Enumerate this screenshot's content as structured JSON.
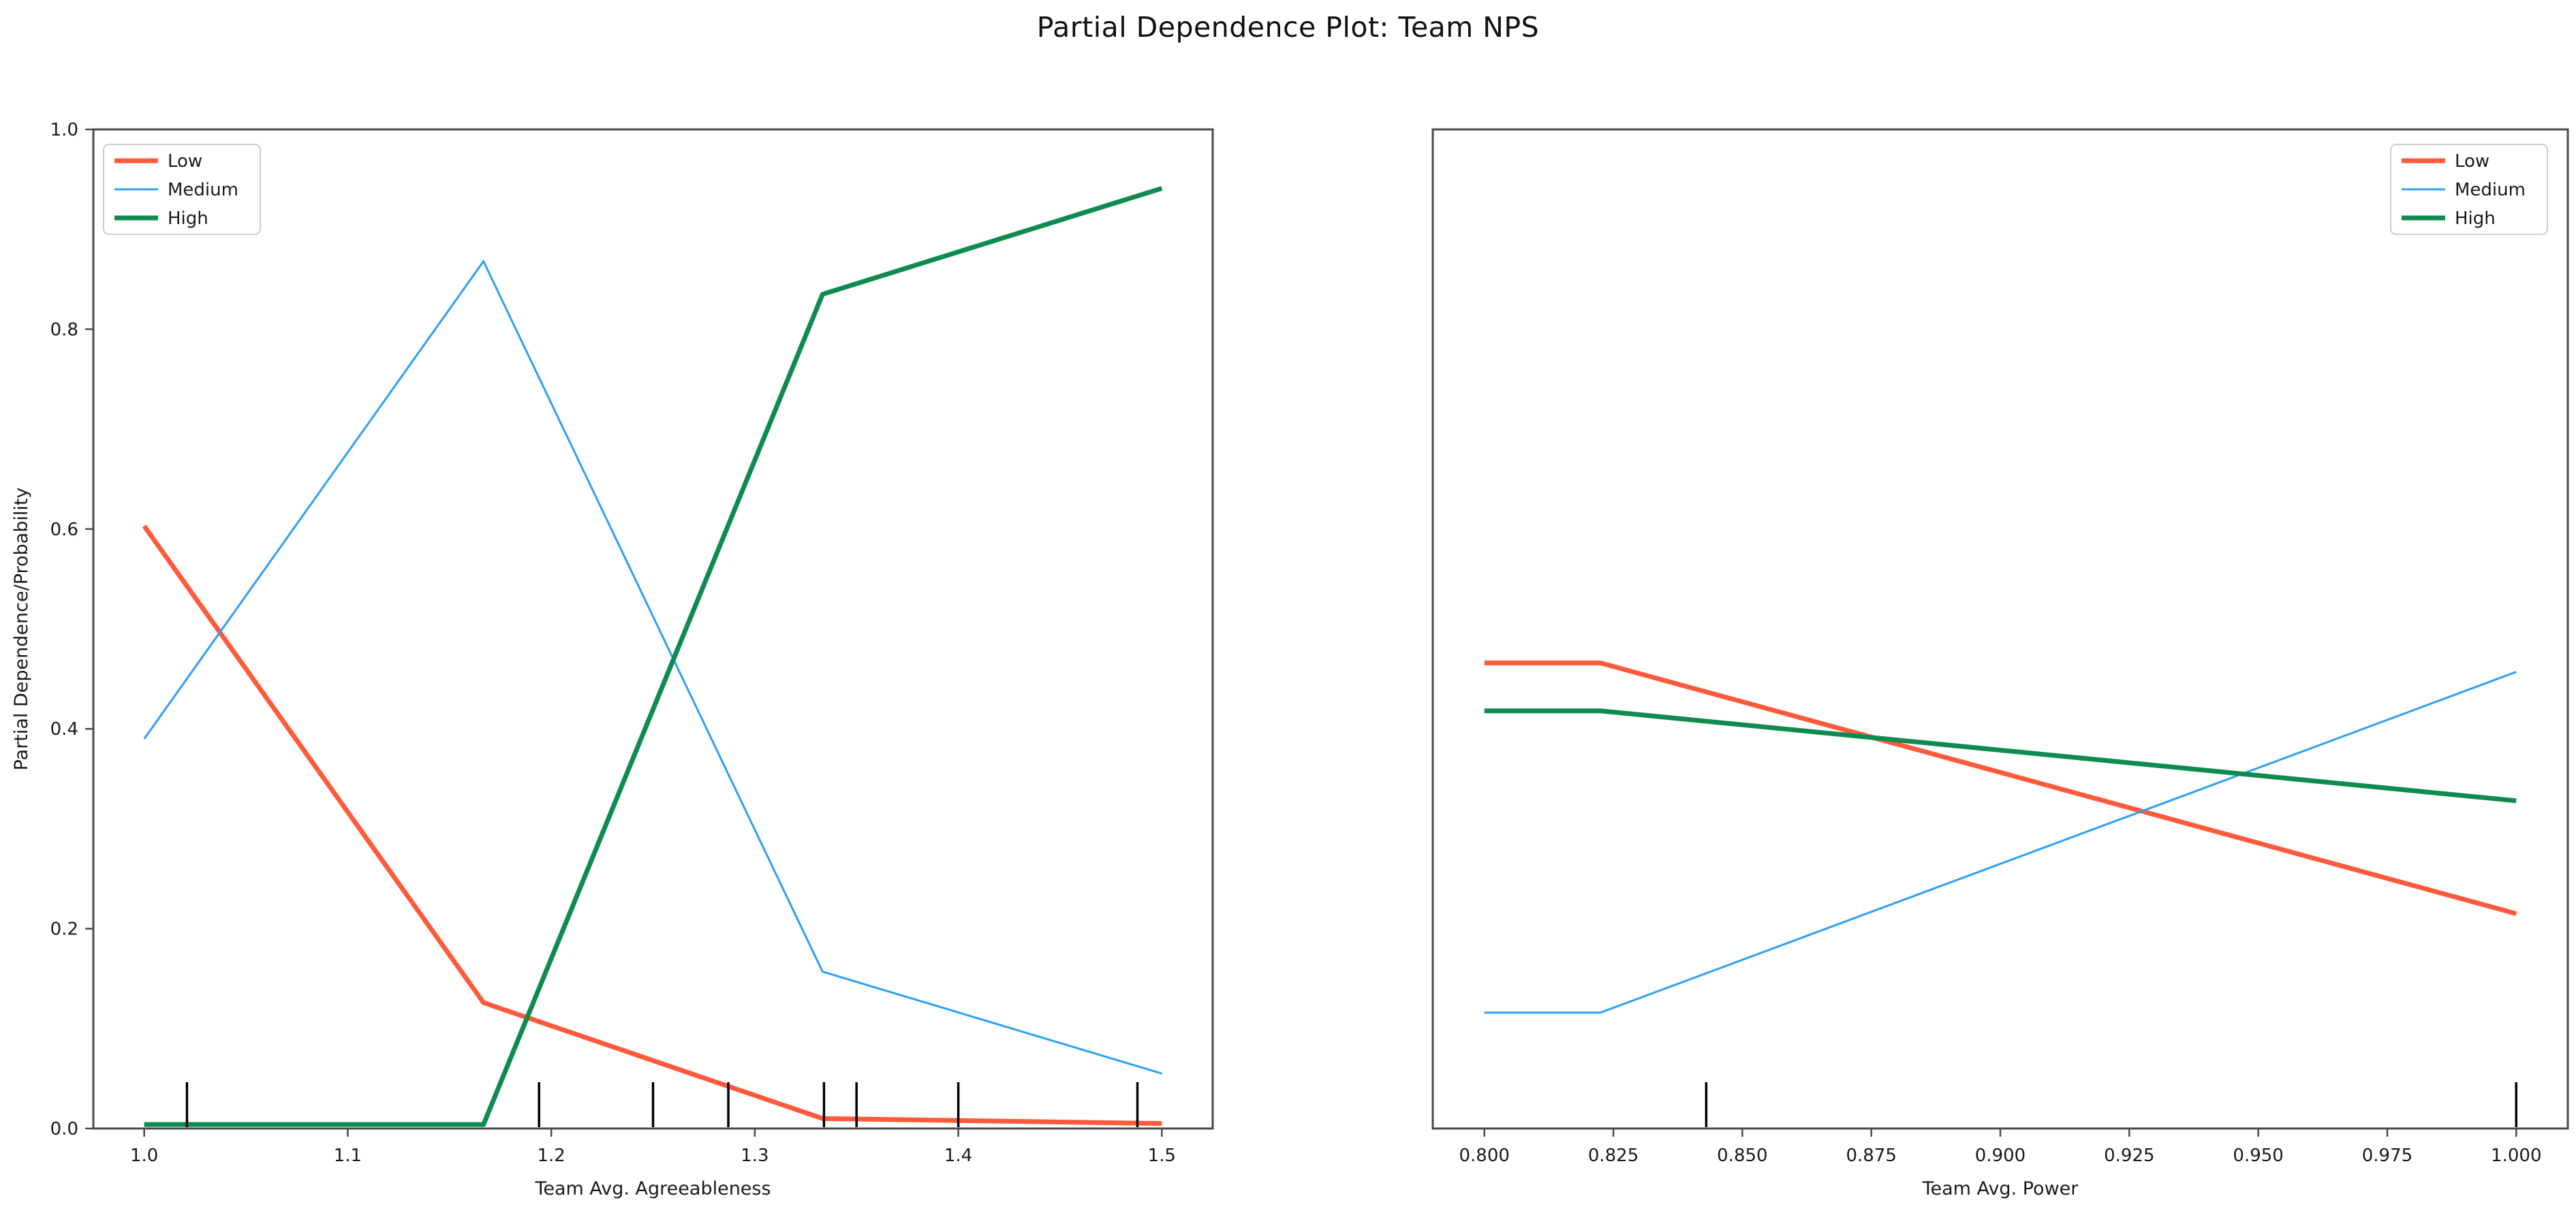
{
  "title": "Partial Dependence Plot: Team NPS",
  "ylabel": "Partial Dependence/Probability",
  "colors": {
    "low": "#FF5A3C",
    "medium": "#2CA0F4",
    "high": "#0E8B4F",
    "spine": "#4a4a4a",
    "tick_text": "#1a1a1a",
    "rug": "#000000",
    "legend_border": "#cccccc",
    "background": "#ffffff"
  },
  "chart_data": [
    {
      "type": "line",
      "xlabel": "Team Avg. Agreeableness",
      "ylabel": "Partial Dependence/Probability",
      "xlim": [
        0.975,
        1.525
      ],
      "ylim": [
        0.0,
        1.0
      ],
      "grid": false,
      "x_ticks": [
        1.0,
        1.1,
        1.2,
        1.3,
        1.4,
        1.5
      ],
      "x_tick_labels": [
        "1.0",
        "1.1",
        "1.2",
        "1.3",
        "1.4",
        "1.5"
      ],
      "y_ticks": [
        0.0,
        0.2,
        0.4,
        0.6,
        0.8,
        1.0
      ],
      "y_tick_labels": [
        "0.0",
        "0.2",
        "0.4",
        "0.6",
        "0.8",
        "1.0"
      ],
      "x": [
        1.0,
        1.1667,
        1.3333,
        1.5
      ],
      "series": [
        {
          "name": "Low",
          "color_key": "low",
          "line_width": 7,
          "values": [
            0.603,
            0.126,
            0.01,
            0.005
          ]
        },
        {
          "name": "Medium",
          "color_key": "medium",
          "line_width": 3,
          "values": [
            0.39,
            0.868,
            0.157,
            0.055
          ]
        },
        {
          "name": "High",
          "color_key": "high",
          "line_width": 7,
          "values": [
            0.004,
            0.004,
            0.835,
            0.941
          ]
        }
      ],
      "rug_x": [
        1.021,
        1.194,
        1.25,
        1.287,
        1.334,
        1.35,
        1.4,
        1.488
      ],
      "legend": [
        "Low",
        "Medium",
        "High"
      ],
      "legend_position": "upper left"
    },
    {
      "type": "line",
      "xlabel": "Team Avg. Power",
      "ylabel": "",
      "xlim": [
        0.79,
        1.01
      ],
      "ylim": [
        0.0,
        1.0
      ],
      "grid": false,
      "x_ticks": [
        0.8,
        0.825,
        0.85,
        0.875,
        0.9,
        0.925,
        0.95,
        0.975,
        1.0
      ],
      "x_tick_labels": [
        "0.800",
        "0.825",
        "0.850",
        "0.875",
        "0.900",
        "0.925",
        "0.950",
        "0.975",
        "1.000"
      ],
      "y_ticks": [],
      "y_tick_labels": [],
      "x": [
        0.8,
        0.8225,
        1.0
      ],
      "series": [
        {
          "name": "Low",
          "color_key": "low",
          "line_width": 7,
          "values": [
            0.466,
            0.466,
            0.215
          ]
        },
        {
          "name": "Medium",
          "color_key": "medium",
          "line_width": 3,
          "values": [
            0.116,
            0.116,
            0.457
          ]
        },
        {
          "name": "High",
          "color_key": "high",
          "line_width": 7,
          "values": [
            0.418,
            0.418,
            0.328
          ]
        }
      ],
      "rug_x": [
        0.843,
        1.0
      ],
      "legend": [
        "Low",
        "Medium",
        "High"
      ],
      "legend_position": "upper right"
    }
  ]
}
